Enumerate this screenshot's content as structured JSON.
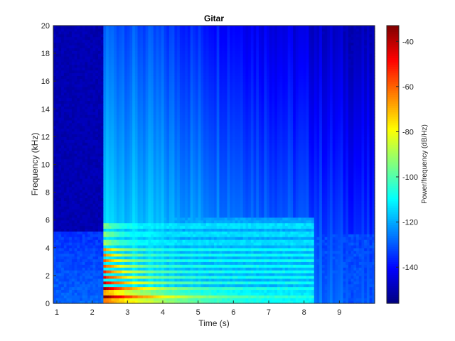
{
  "chart_data": {
    "type": "heatmap",
    "title": "Gitar",
    "xlabel": "Time (s)",
    "ylabel": "Frequency (kHz)",
    "xlim": [
      0.9,
      10.0
    ],
    "ylim": [
      0,
      20
    ],
    "x_ticks": [
      1,
      2,
      3,
      4,
      5,
      6,
      7,
      8,
      9
    ],
    "y_ticks": [
      0,
      2,
      4,
      6,
      8,
      10,
      12,
      14,
      16,
      18,
      20
    ],
    "colorbar": {
      "label": "Power/frequency (dB/Hz)",
      "range": [
        -156,
        -33
      ],
      "ticks": [
        -40,
        -60,
        -80,
        -100,
        -120,
        -140
      ],
      "colormap": "jet"
    },
    "notes_onset_s": 2.3,
    "note_decay_end_s": 8.3,
    "sound_regions": [
      {
        "t_start": 2.3,
        "t_end": 8.3,
        "freq_max_khz": 6.2,
        "peak_db": -35
      },
      {
        "t_start": 2.3,
        "t_end": 10.0,
        "freq_max_khz": 20,
        "peak_db": -115
      }
    ],
    "harmonic_bands_khz": [
      0.2,
      0.5,
      0.8,
      1.1,
      1.5,
      1.9,
      2.3,
      2.7,
      3.1,
      3.5,
      3.9,
      4.4,
      5.0,
      5.6
    ]
  }
}
